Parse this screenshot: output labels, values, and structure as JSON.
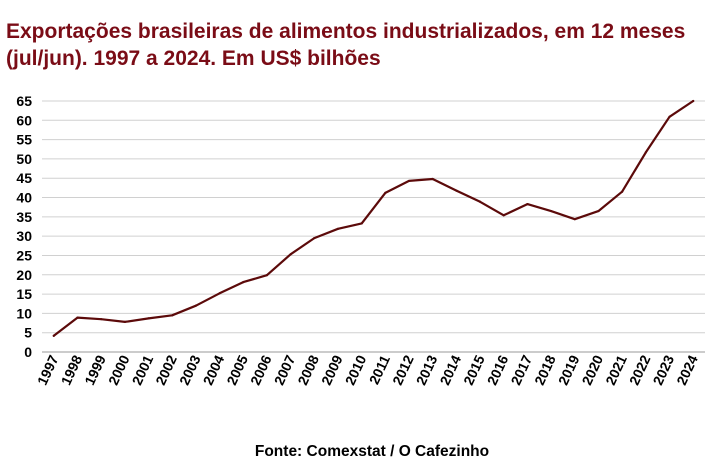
{
  "chart_data": {
    "type": "line",
    "title": "Exportações brasileiras de alimentos industrializados, em 12 meses (jul/jun). 1997 a 2024. Em US$ bilhões",
    "xlabel": "",
    "ylabel": "",
    "ylim": [
      0,
      65
    ],
    "yticks": [
      0,
      5,
      10,
      15,
      20,
      25,
      30,
      35,
      40,
      45,
      50,
      55,
      60,
      65
    ],
    "grid": true,
    "legend": "none",
    "line_color": "#5c0a0a",
    "categories": [
      "1997",
      "1998",
      "1999",
      "2000",
      "2001",
      "2002",
      "2003",
      "2004",
      "2005",
      "2006",
      "2007",
      "2008",
      "2009",
      "2010",
      "2011",
      "2012",
      "2013",
      "2014",
      "2015",
      "2016",
      "2017",
      "2018",
      "2019",
      "2020",
      "2021",
      "2022",
      "2023",
      "2024"
    ],
    "values": [
      4.2,
      8.9,
      8.5,
      7.8,
      8.7,
      9.5,
      12.0,
      15.2,
      18.1,
      19.9,
      25.3,
      29.5,
      31.9,
      33.3,
      41.2,
      44.3,
      44.8,
      41.8,
      38.9,
      35.4,
      38.3,
      36.5,
      34.4,
      36.5,
      41.5,
      51.7,
      60.9,
      65.0
    ],
    "source": "Fonte: Comexstat  / O Cafezinho"
  }
}
